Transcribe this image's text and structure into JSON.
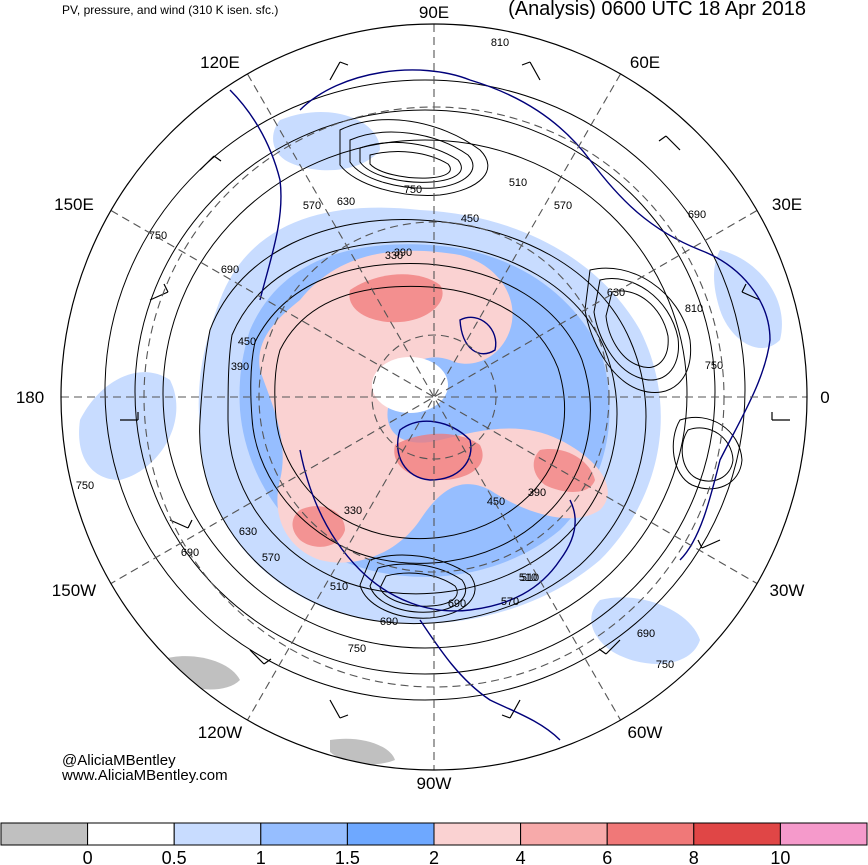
{
  "header": {
    "left_title": "PV, pressure, and wind (310 K isen. sfc.)",
    "right_title": "(Analysis) 0600 UTC 18 Apr 2018"
  },
  "credits": {
    "handle": "@AliciaMBentley",
    "website": "www.AliciaMBentley.com"
  },
  "longitude_labels": [
    "90E",
    "60E",
    "30E",
    "0",
    "30W",
    "60W",
    "90W",
    "120W",
    "150W",
    "180",
    "150E",
    "120E"
  ],
  "contour_labels": [
    "810",
    "750",
    "690",
    "630",
    "570",
    "510",
    "450",
    "390",
    "330",
    "810",
    "750",
    "690",
    "630",
    "570",
    "510",
    "450",
    "390",
    "330",
    "750",
    "690",
    "630",
    "570",
    "510",
    "450",
    "390",
    "750",
    "690",
    "570",
    "510",
    "750",
    "690",
    "750",
    "690"
  ],
  "colorbar": {
    "colors": [
      "#c0c0c0",
      "#ffffff",
      "#c8dcff",
      "#96beff",
      "#6ea8ff",
      "#fad2d2",
      "#f7aaaa",
      "#f07878",
      "#e04646",
      "#f59acb"
    ],
    "tick_labels": [
      "0",
      "0.5",
      "1",
      "1.5",
      "2",
      "4",
      "6",
      "8",
      "10"
    ]
  },
  "map_colors": {
    "coastline": "#00007a",
    "contour": "#000000",
    "grid": "#555555",
    "pv_low": "#c8dcff",
    "pv_mid": "#96beff",
    "pv_high": "#fad2d2",
    "pv_max": "#f07878"
  }
}
